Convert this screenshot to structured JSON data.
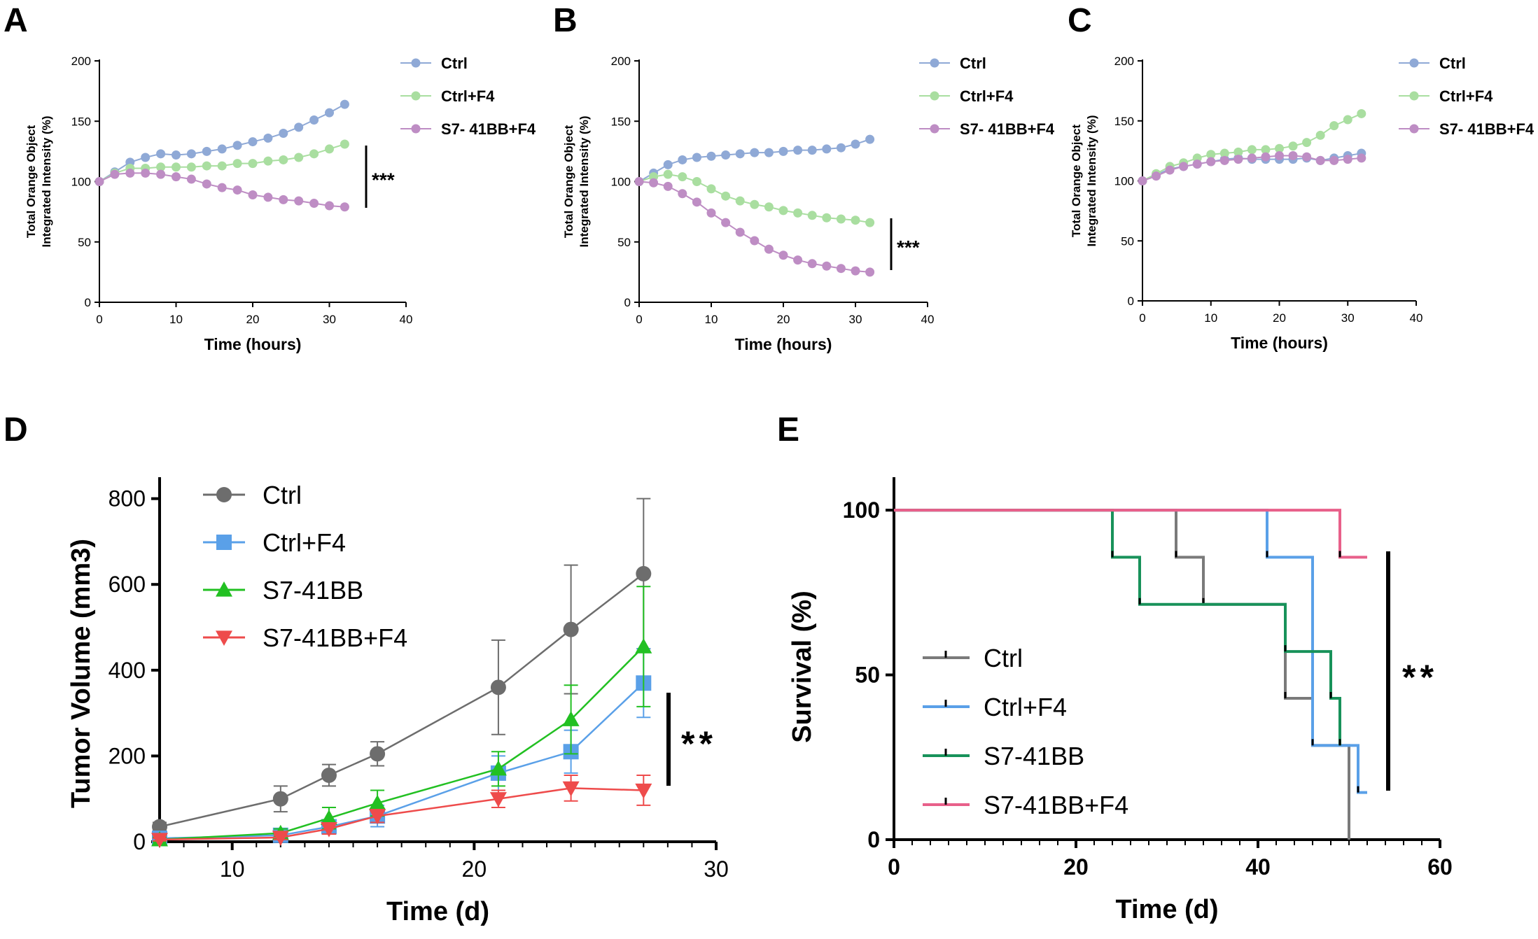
{
  "panels": [
    {
      "key": "A",
      "label": "A"
    },
    {
      "key": "B",
      "label": "B"
    },
    {
      "key": "C",
      "label": "C"
    },
    {
      "key": "D",
      "label": "D"
    },
    {
      "key": "E",
      "label": "E"
    }
  ],
  "colors": {
    "incucyte_ctrl": "#8fa9d6",
    "incucyte_ctrl_f4": "#a9dea0",
    "incucyte_s7": "#be8dc4",
    "tumor_ctrl": "#6d6d6d",
    "tumor_ctrl_f4": "#5aa0e8",
    "tumor_s7": "#22c022",
    "tumor_s7_f4": "#ee4b4b",
    "surv_ctrl": "#7a7a7a",
    "surv_ctrl_f4": "#5aa0e8",
    "surv_s7": "#18925a",
    "surv_s7_f4": "#e8608a"
  },
  "chart_data": [
    {
      "panel": "A",
      "type": "line",
      "title": "",
      "xlabel": "Time (hours)",
      "ylabel": [
        "Total Orange Object",
        "Integrated Intensity (%)"
      ],
      "xlim": [
        0,
        40
      ],
      "ylim": [
        0,
        200
      ],
      "xticks": [
        "0",
        "10",
        "20",
        "30",
        "40"
      ],
      "yticks": [
        "0",
        "50",
        "100",
        "150",
        "200"
      ],
      "x": [
        0,
        2,
        4,
        6,
        8,
        10,
        12,
        14,
        16,
        18,
        20,
        22,
        24,
        26,
        28,
        30,
        32
      ],
      "series": [
        {
          "name": "Ctrl",
          "color_key": "incucyte_ctrl",
          "values": [
            100,
            108,
            116,
            120,
            123,
            122,
            123,
            125,
            127,
            130,
            133,
            136,
            140,
            145,
            151,
            157,
            164
          ]
        },
        {
          "name": "Ctrl+F4",
          "color_key": "incucyte_ctrl_f4",
          "values": [
            100,
            107,
            111,
            111,
            112,
            112,
            112,
            113,
            113,
            115,
            115,
            117,
            118,
            120,
            123,
            127,
            131
          ]
        },
        {
          "name": "S7- 41BB+F4",
          "color_key": "incucyte_s7",
          "values": [
            100,
            106,
            107,
            107,
            106,
            104,
            102,
            98,
            95,
            93,
            89,
            87,
            85,
            84,
            82,
            80,
            79
          ]
        }
      ],
      "significance": "***"
    },
    {
      "panel": "B",
      "type": "line",
      "title": "",
      "xlabel": "Time (hours)",
      "ylabel": [
        "Total Orange Object",
        "Integrated Intensity (%)"
      ],
      "xlim": [
        0,
        40
      ],
      "ylim": [
        0,
        200
      ],
      "xticks": [
        "0",
        "10",
        "20",
        "30",
        "40"
      ],
      "yticks": [
        "0",
        "50",
        "100",
        "150",
        "200"
      ],
      "x": [
        0,
        2,
        4,
        6,
        8,
        10,
        12,
        14,
        16,
        18,
        20,
        22,
        24,
        26,
        28,
        30,
        32
      ],
      "series": [
        {
          "name": "Ctrl",
          "color_key": "incucyte_ctrl",
          "values": [
            100,
            107,
            114,
            118,
            120,
            121,
            122,
            123,
            124,
            124,
            125,
            126,
            126,
            127,
            128,
            131,
            135
          ]
        },
        {
          "name": "Ctrl+F4",
          "color_key": "incucyte_ctrl_f4",
          "values": [
            100,
            104,
            106,
            104,
            100,
            94,
            88,
            84,
            81,
            79,
            76,
            74,
            72,
            70,
            69,
            68,
            66
          ]
        },
        {
          "name": "S7- 41BB+F4",
          "color_key": "incucyte_s7",
          "values": [
            100,
            99,
            96,
            90,
            83,
            74,
            66,
            58,
            51,
            44,
            39,
            35,
            32,
            30,
            28,
            26,
            25
          ]
        }
      ],
      "significance": "***"
    },
    {
      "panel": "C",
      "type": "line",
      "title": "",
      "xlabel": "Time (hours)",
      "ylabel": [
        "Total Orange Object",
        "Integrated Intensity (%)"
      ],
      "xlim": [
        0,
        40
      ],
      "ylim": [
        0,
        200
      ],
      "xticks": [
        "0",
        "10",
        "20",
        "30",
        "40"
      ],
      "yticks": [
        "0",
        "50",
        "100",
        "150",
        "200"
      ],
      "x": [
        0,
        2,
        4,
        6,
        8,
        10,
        12,
        14,
        16,
        18,
        20,
        22,
        24,
        26,
        28,
        30,
        32
      ],
      "series": [
        {
          "name": "Ctrl",
          "color_key": "incucyte_ctrl",
          "values": [
            100,
            105,
            110,
            112,
            114,
            116,
            118,
            119,
            118,
            118,
            118,
            118,
            119,
            117,
            119,
            121,
            123
          ]
        },
        {
          "name": "Ctrl+F4",
          "color_key": "incucyte_ctrl_f4",
          "values": [
            100,
            106,
            112,
            115,
            119,
            122,
            123,
            124,
            126,
            126,
            127,
            129,
            132,
            138,
            146,
            151,
            156
          ]
        },
        {
          "name": "S7- 41BB+F4",
          "color_key": "incucyte_s7",
          "values": [
            100,
            104,
            109,
            112,
            114,
            116,
            117,
            118,
            119,
            120,
            121,
            121,
            120,
            117,
            117,
            118,
            119
          ]
        }
      ],
      "significance": ""
    },
    {
      "panel": "D",
      "type": "line",
      "title": "",
      "xlabel": "Time (d)",
      "ylabel": "Tumor Volume (mm3)",
      "xlim": [
        7,
        30
      ],
      "ylim": [
        0,
        850
      ],
      "xticks": [
        "10",
        "20",
        "30"
      ],
      "yticks": [
        "0",
        "200",
        "400",
        "600",
        "800"
      ],
      "x": [
        7,
        12,
        14,
        16,
        21,
        24,
        27
      ],
      "series": [
        {
          "name": "Ctrl",
          "marker": "circle",
          "color_key": "tumor_ctrl",
          "values": [
            35,
            100,
            155,
            205,
            360,
            495,
            625
          ],
          "errors": [
            10,
            30,
            25,
            28,
            110,
            150,
            175
          ]
        },
        {
          "name": "Ctrl+F4",
          "marker": "square",
          "color_key": "tumor_ctrl_f4",
          "values": [
            8,
            15,
            35,
            60,
            160,
            210,
            370
          ],
          "errors": [
            5,
            10,
            15,
            25,
            40,
            50,
            80
          ]
        },
        {
          "name": "S7-41BB",
          "marker": "triangle-up",
          "color_key": "tumor_s7",
          "values": [
            5,
            20,
            55,
            90,
            170,
            285,
            455
          ],
          "errors": [
            5,
            10,
            25,
            30,
            40,
            80,
            140
          ]
        },
        {
          "name": "S7-41BB+F4",
          "marker": "triangle-down",
          "color_key": "tumor_s7_f4",
          "values": [
            5,
            10,
            30,
            60,
            100,
            125,
            120
          ],
          "errors": [
            3,
            5,
            12,
            15,
            20,
            30,
            35
          ]
        }
      ],
      "significance": "**"
    },
    {
      "panel": "E",
      "type": "line",
      "title": "",
      "xlabel": "Time (d)",
      "ylabel": "Survival (%)",
      "xlim": [
        0,
        60
      ],
      "ylim": [
        0,
        110
      ],
      "xticks": [
        "0",
        "20",
        "40",
        "60"
      ],
      "yticks": [
        "0",
        "50",
        "100"
      ],
      "series": [
        {
          "name": "Ctrl",
          "color_key": "surv_ctrl",
          "x": [
            0,
            31,
            31,
            34,
            34,
            43,
            43,
            46,
            46,
            50,
            50
          ],
          "values": [
            100,
            100,
            85.7,
            85.7,
            71.4,
            71.4,
            42.9,
            42.9,
            28.6,
            28.6,
            0
          ]
        },
        {
          "name": "Ctrl+F4",
          "color_key": "surv_ctrl_f4",
          "x": [
            0,
            41,
            41,
            46,
            46,
            51,
            51,
            52
          ],
          "values": [
            100,
            100,
            85.7,
            85.7,
            28.6,
            28.6,
            14.3,
            14.3
          ]
        },
        {
          "name": "S7-41BB",
          "color_key": "surv_s7",
          "x": [
            0,
            24,
            24,
            27,
            27,
            43,
            43,
            48,
            48,
            49,
            49
          ],
          "values": [
            100,
            100,
            85.7,
            85.7,
            71.4,
            71.4,
            57.1,
            57.1,
            42.9,
            42.9,
            28.6
          ]
        },
        {
          "name": "S7-41BB+F4",
          "color_key": "surv_s7_f4",
          "x": [
            0,
            49,
            49,
            52
          ],
          "values": [
            100,
            100,
            85.7,
            85.7
          ]
        }
      ],
      "significance": "**"
    }
  ]
}
